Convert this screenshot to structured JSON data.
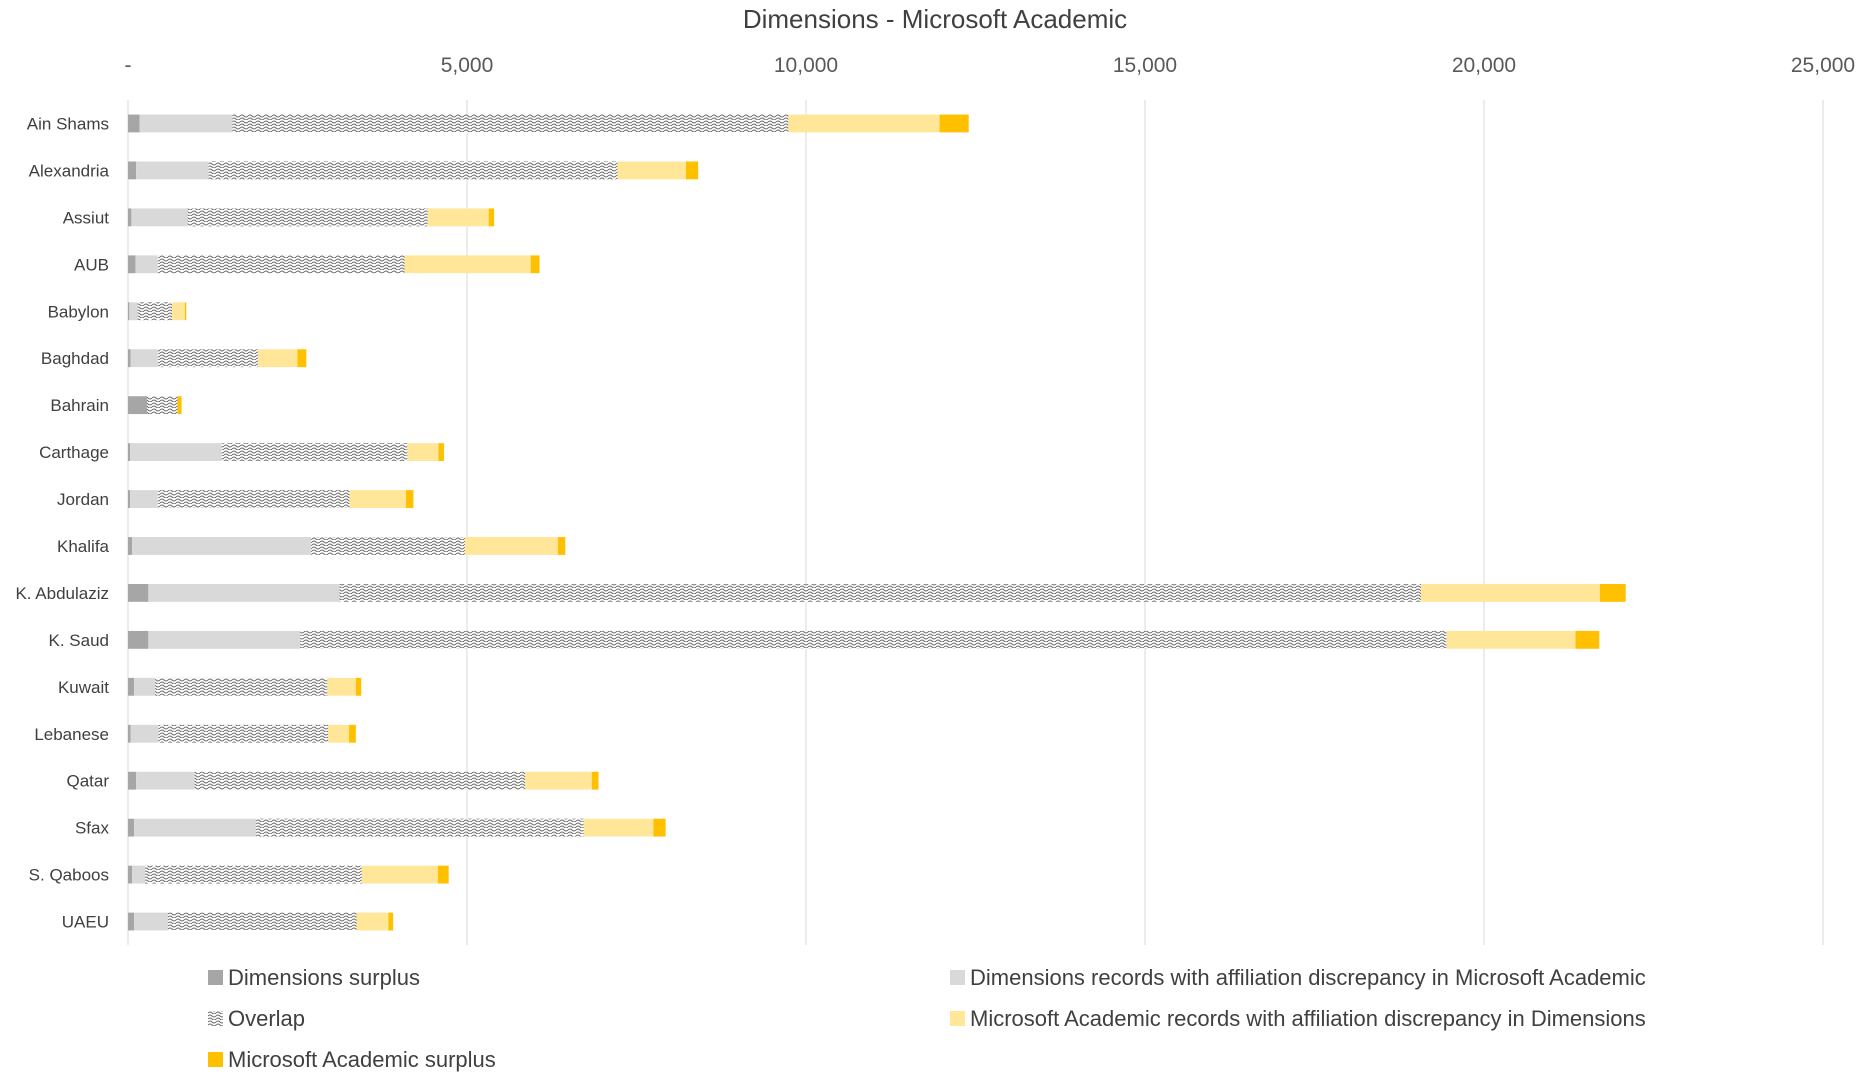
{
  "chart_data": {
    "type": "bar",
    "orientation": "horizontal",
    "stacked": true,
    "title": "Dimensions - Microsoft Academic",
    "xlabel": "",
    "ylabel": "",
    "xlim": [
      0,
      25000
    ],
    "x_ticks": [
      {
        "value": 0,
        "label": "-"
      },
      {
        "value": 5000,
        "label": "5,000"
      },
      {
        "value": 10000,
        "label": "10,000"
      },
      {
        "value": 15000,
        "label": "15,000"
      },
      {
        "value": 20000,
        "label": "20,000"
      },
      {
        "value": 25000,
        "label": "25,000"
      }
    ],
    "x_axis_position": "top",
    "grid": "vertical",
    "legend_position": "bottom",
    "categories": [
      "Ain Shams",
      "Alexandria",
      "Assiut",
      "AUB",
      "Babylon",
      "Baghdad",
      "Bahrain",
      "Carthage",
      "Jordan",
      "Khalifa",
      "K. Abdulaziz",
      "K. Saud",
      "Kuwait",
      "Lebanese",
      "Qatar",
      "Sfax",
      "S. Qaboos",
      "UAEU"
    ],
    "series": [
      {
        "name": "Dimensions surplus",
        "color": "#a6a6a6",
        "pattern": "solid",
        "values": [
          170,
          120,
          50,
          110,
          20,
          40,
          280,
          30,
          30,
          60,
          300,
          300,
          90,
          40,
          120,
          90,
          60,
          90
        ]
      },
      {
        "name": "Dimensions records with affiliation discrepancy in Microsoft Academic",
        "color": "#d9d9d9",
        "pattern": "solid",
        "values": [
          1370,
          1070,
          830,
          330,
          120,
          400,
          0,
          1350,
          410,
          2640,
          2820,
          2240,
          310,
          410,
          860,
          1800,
          190,
          500
        ]
      },
      {
        "name": "Overlap",
        "color": "#ffffff",
        "pattern": "wave",
        "values": [
          8200,
          6030,
          3540,
          3640,
          510,
          1480,
          450,
          2740,
          2830,
          2270,
          15950,
          16910,
          2540,
          2500,
          4880,
          4830,
          3200,
          2780
        ]
      },
      {
        "name": "Microsoft Academic records with affiliation discrepancy in Dimensions",
        "color": "#ffe699",
        "pattern": "solid",
        "values": [
          2230,
          1010,
          900,
          1860,
          190,
          580,
          0,
          460,
          830,
          1370,
          2640,
          1900,
          420,
          310,
          980,
          1030,
          1120,
          470
        ]
      },
      {
        "name": "Microsoft Academic surplus",
        "color": "#ffc000",
        "pattern": "solid",
        "values": [
          430,
          180,
          80,
          130,
          20,
          130,
          60,
          80,
          110,
          110,
          380,
          350,
          80,
          100,
          100,
          180,
          160,
          70
        ]
      }
    ]
  }
}
